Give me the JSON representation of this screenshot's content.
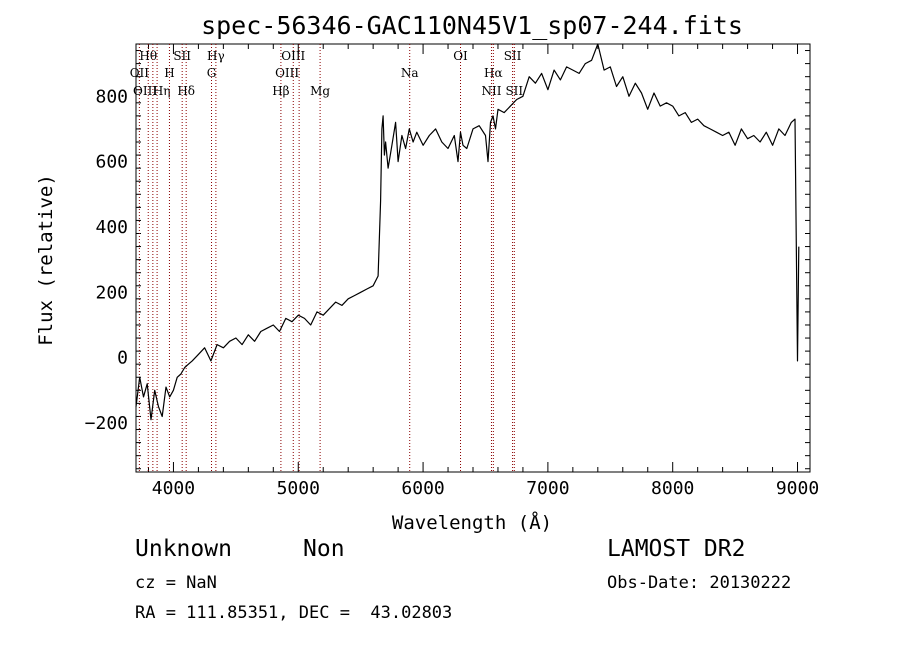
{
  "chart_data": {
    "type": "line",
    "title": "spec-56346-GAC110N45V1_sp07-244.fits",
    "xlabel": "Wavelength (Å)",
    "ylabel": "Flux (relative)",
    "xlim": [
      3700,
      9100
    ],
    "ylim": [
      -350,
      960
    ],
    "xticks": [
      4000,
      5000,
      6000,
      7000,
      8000,
      9000
    ],
    "yticks": [
      -200,
      0,
      200,
      400,
      600,
      800
    ],
    "grid": false,
    "line_color": "#000000",
    "marker_color": "#8b0000",
    "series": [
      {
        "x": [
          3700,
          3730,
          3760,
          3790,
          3820,
          3850,
          3880,
          3910,
          3940,
          3970,
          4000,
          4030,
          4060,
          4090,
          4120,
          4150,
          4200,
          4250,
          4300,
          4350,
          4400,
          4450,
          4500,
          4550,
          4600,
          4650,
          4700,
          4750,
          4800,
          4850,
          4900,
          4950,
          5000,
          5050,
          5100,
          5150,
          5200,
          5250,
          5300,
          5350,
          5400,
          5450,
          5500,
          5550,
          5600,
          5640,
          5660,
          5670,
          5680,
          5690,
          5700,
          5720,
          5750,
          5780,
          5800,
          5830,
          5860,
          5890,
          5920,
          5950,
          6000,
          6050,
          6100,
          6150,
          6200,
          6250,
          6280,
          6300,
          6320,
          6350,
          6400,
          6450,
          6500,
          6520,
          6540,
          6560,
          6580,
          6600,
          6650,
          6700,
          6750,
          6800,
          6850,
          6900,
          6950,
          7000,
          7050,
          7100,
          7150,
          7200,
          7250,
          7300,
          7350,
          7400,
          7450,
          7500,
          7550,
          7600,
          7650,
          7700,
          7750,
          7800,
          7850,
          7900,
          7950,
          8000,
          8050,
          8100,
          8150,
          8200,
          8250,
          8300,
          8350,
          8400,
          8450,
          8500,
          8550,
          8600,
          8650,
          8700,
          8750,
          8800,
          8850,
          8900,
          8950,
          8980,
          9000,
          9010
        ],
        "y": [
          -150,
          -60,
          -120,
          -80,
          -190,
          -100,
          -150,
          -180,
          -90,
          -120,
          -100,
          -60,
          -50,
          -30,
          -20,
          -10,
          10,
          30,
          -10,
          40,
          30,
          50,
          60,
          40,
          70,
          50,
          80,
          90,
          100,
          80,
          120,
          110,
          130,
          120,
          100,
          140,
          130,
          150,
          170,
          160,
          180,
          190,
          200,
          210,
          220,
          250,
          480,
          700,
          740,
          620,
          660,
          580,
          650,
          720,
          600,
          680,
          640,
          700,
          660,
          690,
          650,
          680,
          700,
          660,
          640,
          680,
          600,
          690,
          650,
          640,
          700,
          710,
          680,
          600,
          720,
          740,
          700,
          760,
          750,
          770,
          790,
          800,
          860,
          840,
          870,
          820,
          880,
          850,
          890,
          880,
          870,
          900,
          910,
          960,
          880,
          890,
          830,
          860,
          800,
          840,
          810,
          760,
          810,
          770,
          780,
          770,
          740,
          750,
          720,
          730,
          710,
          700,
          690,
          680,
          690,
          650,
          700,
          670,
          680,
          660,
          690,
          650,
          700,
          680,
          720,
          730,
          -10,
          340
        ]
      }
    ],
    "line_markers": [
      {
        "label": "Hθ",
        "x": 3798,
        "row": 1
      },
      {
        "label": "OII",
        "x": 3727,
        "row": 2
      },
      {
        "label": "OIII",
        "x": 3869,
        "row": 3,
        "anchor": "end"
      },
      {
        "label": "Hη",
        "x": 3835,
        "row": 3,
        "anchor": "start"
      },
      {
        "label": "SII",
        "x": 4070,
        "row": 1
      },
      {
        "label": "H",
        "x": 3968,
        "row": 2
      },
      {
        "label": "Hδ",
        "x": 4102,
        "row": 3
      },
      {
        "label": "Hγ",
        "x": 4340,
        "row": 1
      },
      {
        "label": "G",
        "x": 4305,
        "row": 2
      },
      {
        "label": "OIII",
        "x": 4960,
        "row": 1
      },
      {
        "label": "OIII",
        "x": 5007,
        "row": 2,
        "anchor": "end"
      },
      {
        "label": "Hβ",
        "x": 4861,
        "row": 3
      },
      {
        "label": "Mg",
        "x": 5175,
        "row": 3
      },
      {
        "label": "Na",
        "x": 5893,
        "row": 2
      },
      {
        "label": "OI",
        "x": 6300,
        "row": 1
      },
      {
        "label": "Hα",
        "x": 6563,
        "row": 2
      },
      {
        "label": "NII",
        "x": 6548,
        "row": 3
      },
      {
        "label": "SII",
        "x": 6717,
        "row": 1
      },
      {
        "label": "SII",
        "x": 6731,
        "row": 3
      }
    ]
  },
  "info": {
    "class_label": "Unknown",
    "subclass_label": "Non",
    "survey": "LAMOST DR2",
    "cz_text": "cz = NaN",
    "obs_date_text": "Obs-Date: 20130222",
    "coords_text": "RA = 111.85351, DEC =  43.02803"
  }
}
